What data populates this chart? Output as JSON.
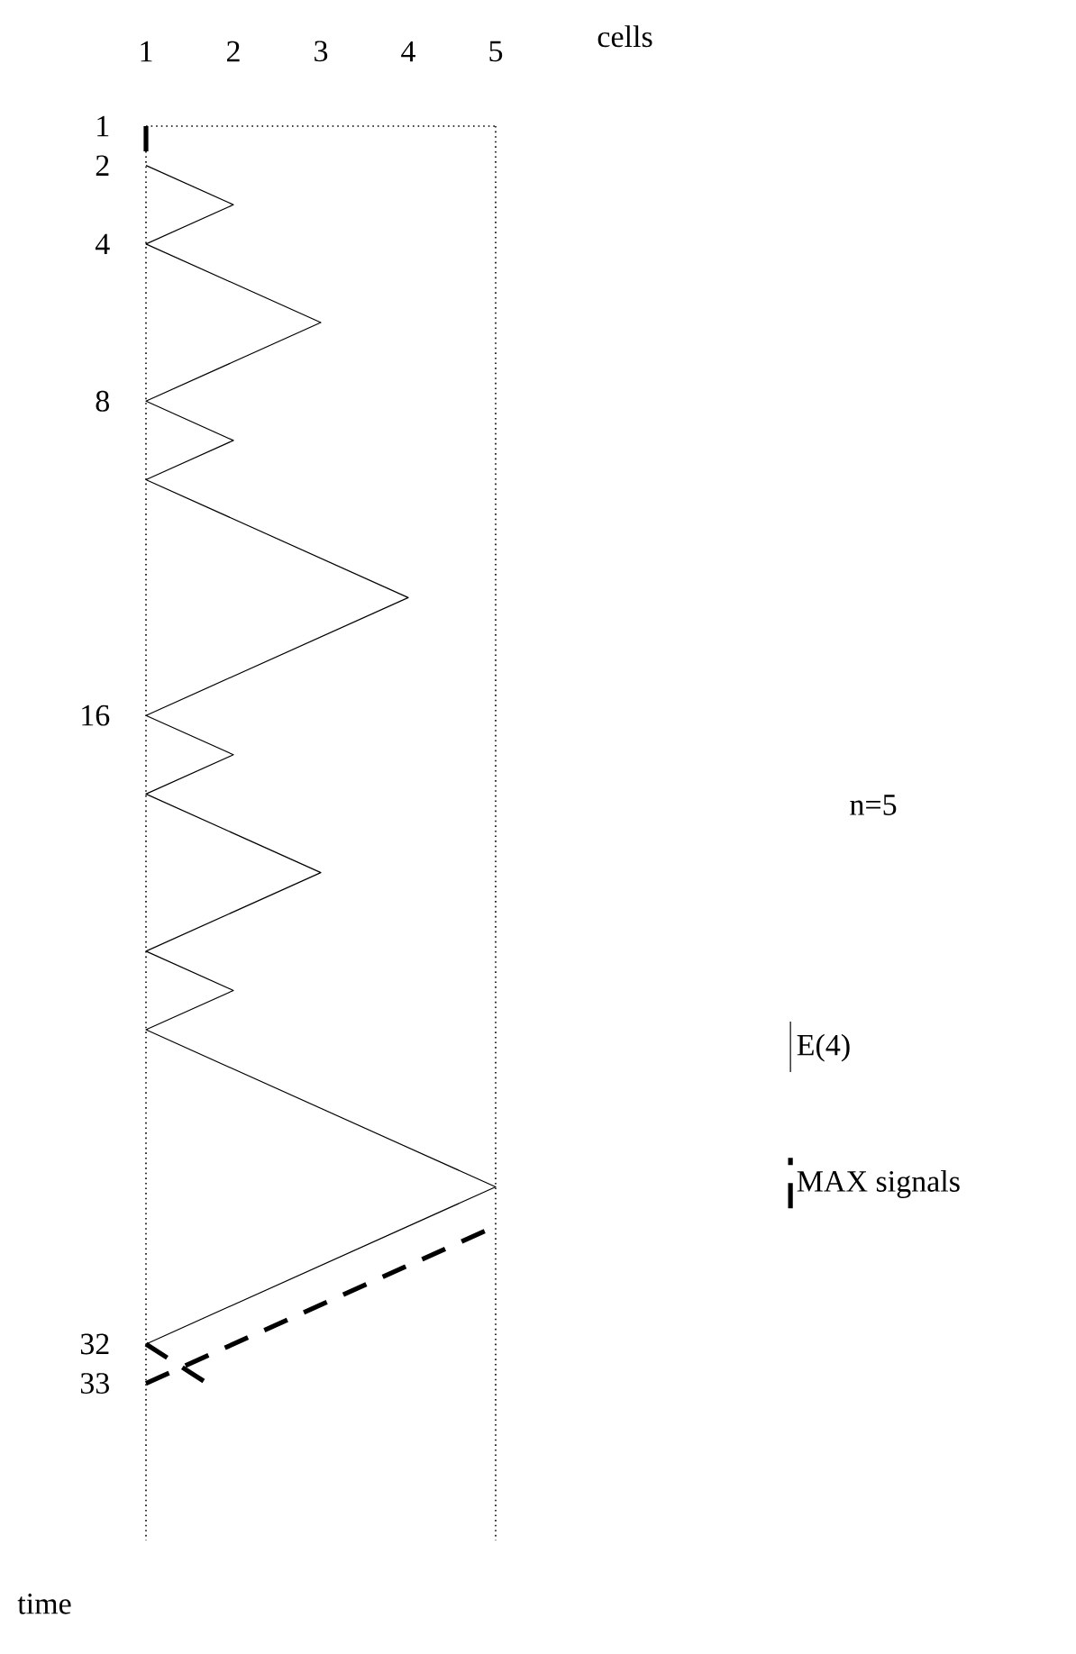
{
  "chart_data": {
    "type": "line",
    "xlabel": "cells",
    "ylabel": "time",
    "xlim": [
      1,
      5
    ],
    "ylim": [
      37,
      1
    ],
    "xticks": [
      1,
      2,
      3,
      4,
      5
    ],
    "yticks": [
      1,
      2,
      4,
      8,
      16,
      32,
      33
    ],
    "legend": "right",
    "marker": "none",
    "grid": false,
    "annotations": [
      "n=5"
    ],
    "ref_lines": [
      {
        "axis": "x",
        "value": 1,
        "line_style": "dotted"
      },
      {
        "axis": "x",
        "value": 5,
        "line_style": "dotted"
      },
      {
        "axis": "y",
        "value": 1,
        "line_style": "dotted"
      }
    ],
    "series": [
      {
        "name": "E(4)",
        "color": "#000000",
        "line_style": "solid",
        "x": [
          1,
          2,
          1,
          3,
          1,
          2,
          1,
          4,
          1,
          2,
          1,
          3,
          1,
          2,
          1,
          5,
          1
        ],
        "values": [
          2,
          3,
          4,
          6,
          8,
          9,
          10,
          13,
          16,
          17,
          18,
          20,
          22,
          23,
          24,
          28,
          32
        ]
      },
      {
        "name": "MAX signals",
        "color": "#000000",
        "line_style": "dashed",
        "x": [
          1,
          1,
          null,
          1,
          1.7,
          null,
          1,
          5
        ],
        "values": [
          1,
          2,
          null,
          32,
          33,
          null,
          33,
          29
        ]
      }
    ]
  }
}
